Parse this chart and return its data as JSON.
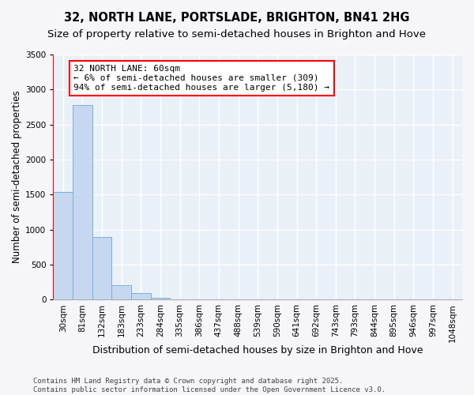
{
  "title1": "32, NORTH LANE, PORTSLADE, BRIGHTON, BN41 2HG",
  "title2": "Size of property relative to semi-detached houses in Brighton and Hove",
  "xlabel": "Distribution of semi-detached houses by size in Brighton and Hove",
  "ylabel": "Number of semi-detached properties",
  "categories": [
    "30sqm",
    "81sqm",
    "132sqm",
    "183sqm",
    "233sqm",
    "284sqm",
    "335sqm",
    "386sqm",
    "437sqm",
    "488sqm",
    "539sqm",
    "590sqm",
    "641sqm",
    "692sqm",
    "743sqm",
    "793sqm",
    "844sqm",
    "895sqm",
    "946sqm",
    "997sqm",
    "1048sqm"
  ],
  "values": [
    1540,
    2780,
    900,
    210,
    95,
    30,
    0,
    0,
    0,
    0,
    0,
    0,
    0,
    0,
    0,
    0,
    0,
    0,
    0,
    0,
    0
  ],
  "bar_color": "#c5d8f0",
  "bar_edge_color": "#7ab0d8",
  "vline_color": "red",
  "vline_x": -0.5,
  "annotation_text": "32 NORTH LANE: 60sqm\n← 6% of semi-detached houses are smaller (309)\n94% of semi-detached houses are larger (5,180) →",
  "ylim": [
    0,
    3500
  ],
  "yticks": [
    0,
    500,
    1000,
    1500,
    2000,
    2500,
    3000,
    3500
  ],
  "background_color": "#eaf0f8",
  "grid_color": "white",
  "fig_bg": "#f5f5fa",
  "footnote": "Contains HM Land Registry data © Crown copyright and database right 2025.\nContains public sector information licensed under the Open Government Licence v3.0.",
  "title1_fontsize": 10.5,
  "title2_fontsize": 9.5,
  "xlabel_fontsize": 9,
  "ylabel_fontsize": 8.5,
  "tick_fontsize": 7.5,
  "annot_fontsize": 8,
  "footnote_fontsize": 6.5
}
